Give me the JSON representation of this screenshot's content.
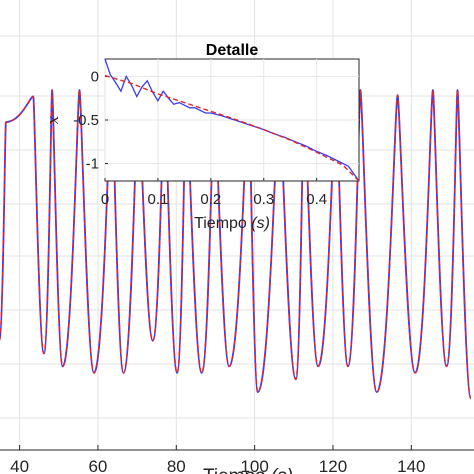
{
  "chart_data": [
    {
      "type": "line",
      "role": "main",
      "x_ticks": [
        "40",
        "60",
        "80",
        "100",
        "120",
        "140"
      ],
      "x_tick_values": [
        40,
        60,
        80,
        100,
        120,
        140
      ],
      "xlabel": "Tiempo",
      "xlabel_unit": "(s)",
      "xlim": [
        35,
        156
      ],
      "ylim": [
        -1.6,
        1.9
      ],
      "grid": true,
      "peaks": [
        {
          "x": 36.5,
          "y": 0.95
        },
        {
          "x": 43.5,
          "y": 1.15
        },
        {
          "x": 48.3,
          "y": 1.2
        },
        {
          "x": 55.3,
          "y": 1.2
        },
        {
          "x": 63.5,
          "y": 1.2
        },
        {
          "x": 70.3,
          "y": 1.2
        },
        {
          "x": 77.0,
          "y": 1.2
        },
        {
          "x": 82.5,
          "y": 1.2
        },
        {
          "x": 89.7,
          "y": 1.18
        },
        {
          "x": 98.5,
          "y": 1.2
        },
        {
          "x": 106.3,
          "y": 1.15
        },
        {
          "x": 112.6,
          "y": 1.2
        },
        {
          "x": 120.8,
          "y": 1.2
        },
        {
          "x": 127.0,
          "y": 1.2
        },
        {
          "x": 136.5,
          "y": 1.16
        },
        {
          "x": 145.5,
          "y": 1.2
        },
        {
          "x": 151.8,
          "y": 1.2
        }
      ],
      "troughs": [
        {
          "x": 34.8,
          "y": -0.75
        },
        {
          "x": 46.2,
          "y": -0.85
        },
        {
          "x": 51.0,
          "y": -0.95
        },
        {
          "x": 59.0,
          "y": -1.0
        },
        {
          "x": 66.5,
          "y": -1.0
        },
        {
          "x": 74.0,
          "y": -0.75
        },
        {
          "x": 80.2,
          "y": -1.0
        },
        {
          "x": 86.5,
          "y": -1.0
        },
        {
          "x": 93.5,
          "y": -0.95
        },
        {
          "x": 100.8,
          "y": -1.15
        },
        {
          "x": 110.5,
          "y": -1.05
        },
        {
          "x": 116.2,
          "y": -0.95
        },
        {
          "x": 123.8,
          "y": -0.95
        },
        {
          "x": 131.2,
          "y": -1.15
        },
        {
          "x": 141.0,
          "y": -1.0
        },
        {
          "x": 149.0,
          "y": -0.95
        },
        {
          "x": 155.2,
          "y": -1.2
        }
      ],
      "series_colors": {
        "solid": "#3b3bf0",
        "dashed": "#e0262b"
      }
    },
    {
      "type": "line",
      "role": "inset",
      "title": "Detalle",
      "xlabel": "Tiempo",
      "xlabel_unit": "(s)",
      "ylabel": "x",
      "x_ticks": [
        "0",
        "0.1",
        "0.2",
        "0.3",
        "0.4"
      ],
      "x_tick_values": [
        0,
        0.1,
        0.2,
        0.3,
        0.4
      ],
      "y_ticks": [
        "0",
        "-0.5",
        "-1"
      ],
      "y_tick_values": [
        0,
        -0.5,
        -1
      ],
      "xlim": [
        0,
        0.48
      ],
      "ylim": [
        -1.2,
        0.2
      ],
      "solid_points": [
        [
          0.0,
          0.2
        ],
        [
          0.01,
          0.02
        ],
        [
          0.02,
          -0.07
        ],
        [
          0.03,
          -0.17
        ],
        [
          0.04,
          0.0
        ],
        [
          0.05,
          -0.1
        ],
        [
          0.06,
          -0.23
        ],
        [
          0.07,
          -0.12
        ],
        [
          0.08,
          -0.05
        ],
        [
          0.09,
          -0.18
        ],
        [
          0.1,
          -0.28
        ],
        [
          0.11,
          -0.17
        ],
        [
          0.12,
          -0.25
        ],
        [
          0.13,
          -0.32
        ],
        [
          0.14,
          -0.3
        ],
        [
          0.15,
          -0.33
        ],
        [
          0.16,
          -0.36
        ],
        [
          0.17,
          -0.36
        ],
        [
          0.18,
          -0.39
        ],
        [
          0.19,
          -0.42
        ],
        [
          0.2,
          -0.42
        ],
        [
          0.22,
          -0.45
        ],
        [
          0.24,
          -0.49
        ],
        [
          0.26,
          -0.53
        ],
        [
          0.28,
          -0.57
        ],
        [
          0.3,
          -0.61
        ],
        [
          0.32,
          -0.66
        ],
        [
          0.34,
          -0.7
        ],
        [
          0.36,
          -0.75
        ],
        [
          0.38,
          -0.8
        ],
        [
          0.4,
          -0.86
        ],
        [
          0.42,
          -0.91
        ],
        [
          0.44,
          -0.97
        ],
        [
          0.46,
          -1.03
        ],
        [
          0.48,
          -1.2
        ]
      ],
      "dashed_points": [
        [
          0.0,
          0.01
        ],
        [
          0.05,
          -0.08
        ],
        [
          0.1,
          -0.2
        ],
        [
          0.15,
          -0.3
        ],
        [
          0.2,
          -0.4
        ],
        [
          0.25,
          -0.5
        ],
        [
          0.3,
          -0.61
        ],
        [
          0.35,
          -0.73
        ],
        [
          0.4,
          -0.87
        ],
        [
          0.45,
          -1.02
        ],
        [
          0.48,
          -1.2
        ]
      ]
    }
  ]
}
